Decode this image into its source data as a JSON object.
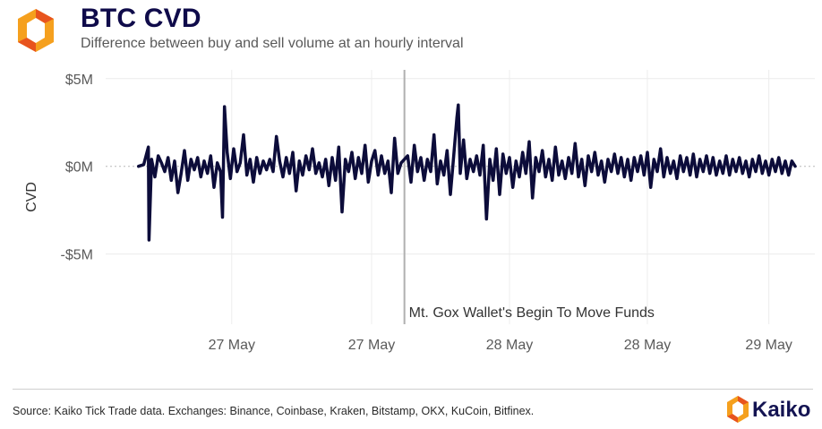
{
  "header": {
    "title": "BTC CVD",
    "subtitle": "Difference between buy and sell volume at an hourly interval"
  },
  "footer": {
    "source": "Source: Kaiko Tick Trade data. Exchanges: Binance, Coinbase, Kraken, Bitstamp, OKX, KuCoin, Bitfinex.",
    "brand": "Kaiko"
  },
  "colors": {
    "series": "#0c0c3a",
    "logo_orange": "#f5a01e",
    "logo_red": "#e8541e",
    "gridline": "#ececec",
    "event_line": "#b0b0b0"
  },
  "icons": {
    "brand": "kaiko-logo-icon"
  },
  "chart_data": {
    "type": "line",
    "title": "BTC CVD",
    "subtitle": "Difference between buy and sell volume at an hourly interval",
    "xlabel": "",
    "ylabel": "CVD",
    "ylim": [
      -9,
      5.5
    ],
    "y_ticks": [
      {
        "value": 5,
        "label": "$5M"
      },
      {
        "value": 0,
        "label": "$0M"
      },
      {
        "value": -5,
        "label": "-$5M"
      }
    ],
    "x_ticks": [
      {
        "value": 0.142,
        "label": "27 May"
      },
      {
        "value": 0.355,
        "label": "27 May"
      },
      {
        "value": 0.565,
        "label": "28 May"
      },
      {
        "value": 0.775,
        "label": "28 May"
      },
      {
        "value": 0.96,
        "label": "29 May"
      }
    ],
    "xlim": [
      -0.05,
      1.03
    ],
    "grid": true,
    "legend": "none",
    "annotations": [
      {
        "type": "vertical-line",
        "x": 0.405,
        "label": "Mt. Gox Wallet's Begin To Move Funds"
      }
    ],
    "series": [
      {
        "values": [
          [
            0.0,
            0.0
          ],
          [
            0.008,
            0.1
          ],
          [
            0.015,
            1.1
          ],
          [
            0.016,
            -4.2
          ],
          [
            0.02,
            0.4
          ],
          [
            0.025,
            -0.6
          ],
          [
            0.03,
            0.6
          ],
          [
            0.035,
            0.2
          ],
          [
            0.04,
            -0.3
          ],
          [
            0.045,
            0.5
          ],
          [
            0.05,
            -0.8
          ],
          [
            0.055,
            0.3
          ],
          [
            0.06,
            -1.5
          ],
          [
            0.065,
            -0.4
          ],
          [
            0.07,
            0.9
          ],
          [
            0.075,
            -0.8
          ],
          [
            0.08,
            0.4
          ],
          [
            0.085,
            -0.2
          ],
          [
            0.09,
            0.5
          ],
          [
            0.095,
            -0.6
          ],
          [
            0.1,
            0.3
          ],
          [
            0.105,
            -0.4
          ],
          [
            0.11,
            0.6
          ],
          [
            0.115,
            -1.2
          ],
          [
            0.12,
            0.2
          ],
          [
            0.125,
            -0.3
          ],
          [
            0.128,
            -2.9
          ],
          [
            0.131,
            3.4
          ],
          [
            0.135,
            0.8
          ],
          [
            0.14,
            -0.7
          ],
          [
            0.145,
            1.0
          ],
          [
            0.15,
            -0.3
          ],
          [
            0.155,
            0.2
          ],
          [
            0.16,
            1.8
          ],
          [
            0.165,
            -0.5
          ],
          [
            0.17,
            0.4
          ],
          [
            0.175,
            -0.9
          ],
          [
            0.18,
            0.5
          ],
          [
            0.185,
            -0.4
          ],
          [
            0.19,
            0.3
          ],
          [
            0.195,
            -0.2
          ],
          [
            0.2,
            0.4
          ],
          [
            0.205,
            -0.3
          ],
          [
            0.21,
            1.7
          ],
          [
            0.215,
            0.3
          ],
          [
            0.22,
            -0.6
          ],
          [
            0.225,
            0.5
          ],
          [
            0.23,
            -0.4
          ],
          [
            0.235,
            0.8
          ],
          [
            0.24,
            -1.4
          ],
          [
            0.245,
            0.3
          ],
          [
            0.25,
            -0.5
          ],
          [
            0.255,
            0.6
          ],
          [
            0.26,
            -0.2
          ],
          [
            0.265,
            1.0
          ],
          [
            0.27,
            -0.4
          ],
          [
            0.275,
            0.2
          ],
          [
            0.28,
            -0.6
          ],
          [
            0.285,
            0.4
          ],
          [
            0.29,
            -1.1
          ],
          [
            0.295,
            0.5
          ],
          [
            0.3,
            -0.8
          ],
          [
            0.305,
            1.1
          ],
          [
            0.31,
            -2.6
          ],
          [
            0.315,
            0.4
          ],
          [
            0.32,
            -0.3
          ],
          [
            0.325,
            0.8
          ],
          [
            0.33,
            -0.7
          ],
          [
            0.335,
            0.5
          ],
          [
            0.34,
            -0.4
          ],
          [
            0.345,
            1.2
          ],
          [
            0.35,
            -0.9
          ],
          [
            0.355,
            0.3
          ],
          [
            0.36,
            0.9
          ],
          [
            0.365,
            -0.5
          ],
          [
            0.37,
            0.6
          ],
          [
            0.375,
            -0.4
          ],
          [
            0.38,
            0.3
          ],
          [
            0.385,
            -1.5
          ],
          [
            0.39,
            1.6
          ],
          [
            0.395,
            -0.4
          ],
          [
            0.4,
            0.2
          ],
          [
            0.41,
            0.6
          ],
          [
            0.415,
            -0.9
          ],
          [
            0.42,
            1.2
          ],
          [
            0.425,
            -0.3
          ],
          [
            0.43,
            0.5
          ],
          [
            0.435,
            -0.8
          ],
          [
            0.44,
            0.4
          ],
          [
            0.445,
            -0.3
          ],
          [
            0.45,
            1.8
          ],
          [
            0.455,
            -1.0
          ],
          [
            0.46,
            0.3
          ],
          [
            0.465,
            -0.5
          ],
          [
            0.47,
            0.9
          ],
          [
            0.475,
            -1.6
          ],
          [
            0.48,
            0.6
          ],
          [
            0.485,
            2.8
          ],
          [
            0.487,
            3.5
          ],
          [
            0.49,
            -0.4
          ],
          [
            0.495,
            1.5
          ],
          [
            0.5,
            -0.7
          ],
          [
            0.505,
            0.4
          ],
          [
            0.51,
            -0.3
          ],
          [
            0.515,
            0.6
          ],
          [
            0.52,
            -0.5
          ],
          [
            0.525,
            1.2
          ],
          [
            0.53,
            -3.0
          ],
          [
            0.535,
            0.4
          ],
          [
            0.54,
            -0.8
          ],
          [
            0.545,
            1.0
          ],
          [
            0.55,
            -1.6
          ],
          [
            0.555,
            0.7
          ],
          [
            0.56,
            -0.4
          ],
          [
            0.565,
            0.5
          ],
          [
            0.57,
            -1.2
          ],
          [
            0.575,
            0.3
          ],
          [
            0.58,
            -0.6
          ],
          [
            0.585,
            0.8
          ],
          [
            0.59,
            -0.4
          ],
          [
            0.595,
            1.4
          ],
          [
            0.6,
            -1.8
          ],
          [
            0.605,
            0.5
          ],
          [
            0.61,
            -0.3
          ],
          [
            0.615,
            0.9
          ],
          [
            0.62,
            -0.6
          ],
          [
            0.625,
            0.4
          ],
          [
            0.63,
            -0.8
          ],
          [
            0.635,
            1.1
          ],
          [
            0.64,
            -0.5
          ],
          [
            0.645,
            0.3
          ],
          [
            0.65,
            -0.7
          ],
          [
            0.655,
            0.5
          ],
          [
            0.66,
            -0.4
          ],
          [
            0.665,
            1.3
          ],
          [
            0.67,
            -0.6
          ],
          [
            0.675,
            0.4
          ],
          [
            0.68,
            -1.1
          ],
          [
            0.685,
            0.6
          ],
          [
            0.69,
            -0.3
          ],
          [
            0.695,
            0.8
          ],
          [
            0.7,
            -0.5
          ],
          [
            0.705,
            0.3
          ],
          [
            0.71,
            -0.9
          ],
          [
            0.715,
            0.4
          ],
          [
            0.72,
            -0.3
          ],
          [
            0.725,
            0.7
          ],
          [
            0.73,
            -0.4
          ],
          [
            0.735,
            0.5
          ],
          [
            0.74,
            -0.6
          ],
          [
            0.745,
            0.4
          ],
          [
            0.75,
            -0.8
          ],
          [
            0.755,
            0.5
          ],
          [
            0.76,
            -0.3
          ],
          [
            0.765,
            0.6
          ],
          [
            0.77,
            -0.5
          ],
          [
            0.775,
            0.8
          ],
          [
            0.78,
            -1.2
          ],
          [
            0.785,
            0.4
          ],
          [
            0.79,
            -0.3
          ],
          [
            0.795,
            1.0
          ],
          [
            0.8,
            -0.6
          ],
          [
            0.805,
            0.5
          ],
          [
            0.81,
            -0.4
          ],
          [
            0.815,
            0.3
          ],
          [
            0.82,
            -0.7
          ],
          [
            0.825,
            0.6
          ],
          [
            0.83,
            -0.3
          ],
          [
            0.835,
            0.5
          ],
          [
            0.84,
            -0.5
          ],
          [
            0.845,
            0.7
          ],
          [
            0.85,
            -0.6
          ],
          [
            0.855,
            0.4
          ],
          [
            0.86,
            -0.3
          ],
          [
            0.865,
            0.6
          ],
          [
            0.87,
            -0.4
          ],
          [
            0.875,
            0.5
          ],
          [
            0.88,
            -0.5
          ],
          [
            0.885,
            0.3
          ],
          [
            0.89,
            -0.4
          ],
          [
            0.895,
            0.6
          ],
          [
            0.9,
            -0.5
          ],
          [
            0.905,
            0.4
          ],
          [
            0.91,
            -0.3
          ],
          [
            0.915,
            0.5
          ],
          [
            0.92,
            -0.4
          ],
          [
            0.925,
            0.3
          ],
          [
            0.93,
            -0.6
          ],
          [
            0.935,
            0.4
          ],
          [
            0.94,
            -0.3
          ],
          [
            0.945,
            0.6
          ],
          [
            0.95,
            -0.4
          ],
          [
            0.955,
            0.3
          ],
          [
            0.96,
            -0.5
          ],
          [
            0.965,
            0.4
          ],
          [
            0.97,
            -0.3
          ],
          [
            0.975,
            0.5
          ],
          [
            0.98,
            -0.4
          ],
          [
            0.985,
            0.3
          ],
          [
            0.99,
            -0.5
          ],
          [
            0.995,
            0.3
          ],
          [
            1.0,
            0.0
          ]
        ]
      }
    ]
  }
}
